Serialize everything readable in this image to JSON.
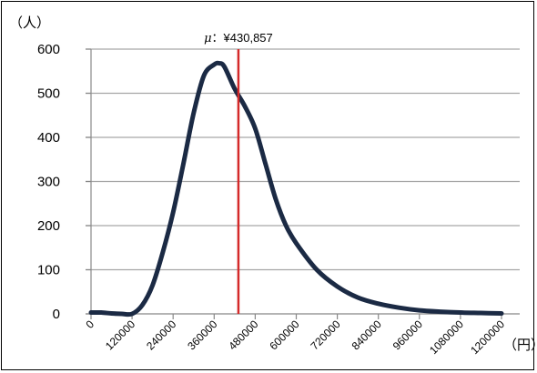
{
  "chart_data": {
    "type": "line",
    "title": "",
    "xlabel": "",
    "ylabel": "",
    "y_unit": "（人）",
    "x_unit": "（円）",
    "xlim": [
      0,
      1200000
    ],
    "ylim": [
      0,
      600
    ],
    "y_ticks": [
      0,
      100,
      200,
      300,
      400,
      500,
      600
    ],
    "x_ticks": [
      0,
      120000,
      240000,
      360000,
      480000,
      600000,
      720000,
      840000,
      960000,
      1080000,
      1200000
    ],
    "y_tick_labels": [
      "0",
      "100",
      "200",
      "300",
      "400",
      "500",
      "600"
    ],
    "x_tick_labels": [
      "0",
      "120000",
      "240000",
      "360000",
      "480000",
      "600000",
      "720000",
      "840000",
      "960000",
      "1080000",
      "1200000"
    ],
    "grid": "horizontal",
    "legend": "none",
    "colors": {
      "curve": "#1b2a44",
      "mean_line": "#d42a2a",
      "grid": "#a6a6a6",
      "axis": "#888888"
    },
    "series": [
      {
        "x": [
          0,
          30000,
          60000,
          90000,
          120000,
          150000,
          180000,
          210000,
          240000,
          270000,
          300000,
          330000,
          360000,
          375000,
          390000,
          420000,
          450000,
          480000,
          510000,
          540000,
          570000,
          600000,
          660000,
          720000,
          780000,
          840000,
          900000,
          960000,
          1020000,
          1080000,
          1140000,
          1200000
        ],
        "y": [
          3,
          3,
          1,
          0,
          0,
          20,
          65,
          140,
          230,
          340,
          455,
          540,
          565,
          568,
          560,
          510,
          470,
          420,
          340,
          260,
          200,
          160,
          100,
          62,
          37,
          23,
          14,
          8,
          5,
          3,
          2,
          1
        ]
      }
    ],
    "annotations": [
      {
        "type": "vline",
        "x": 430857,
        "label_symbol": "μ",
        "label_value": "：¥430,857"
      }
    ]
  }
}
